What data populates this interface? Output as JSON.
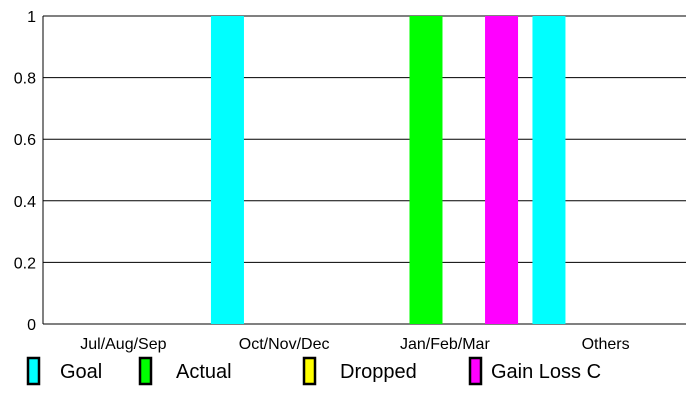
{
  "chart_data": {
    "type": "bar",
    "categories": [
      "Jul/Aug/Sep",
      "Oct/Nov/Dec",
      "Jan/Feb/Mar",
      "Others"
    ],
    "series": [
      {
        "name": "Goal",
        "color": "#00FFFF",
        "values": [
          0,
          1,
          0,
          1
        ]
      },
      {
        "name": "Actual",
        "color": "#00FF00",
        "values": [
          0,
          0,
          1,
          0
        ]
      },
      {
        "name": "Dropped",
        "color": "#FFFF00",
        "values": [
          0,
          0,
          0,
          0
        ]
      },
      {
        "name": "Gain Loss C",
        "color": "#FF00FF",
        "values": [
          0,
          0,
          1,
          0
        ]
      }
    ],
    "ylim": [
      0,
      1
    ],
    "yticks": [
      "0",
      "0.2",
      "0.4",
      "0.6",
      "0.8",
      "1"
    ],
    "grid": true,
    "legend_position": "bottom"
  }
}
